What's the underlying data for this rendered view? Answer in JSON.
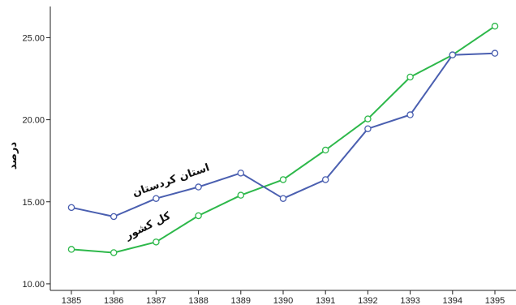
{
  "chart_data": {
    "type": "line",
    "ylabel": "درصد",
    "x": [
      "1385",
      "1386",
      "1387",
      "1388",
      "1389",
      "1390",
      "1391",
      "1392",
      "1393",
      "1394",
      "1395"
    ],
    "ylim": [
      9.6,
      26.9
    ],
    "yticks": [
      "10.00",
      "15.00",
      "20.00",
      "25.00"
    ],
    "grid": false,
    "series": [
      {
        "name": "استان کردستان",
        "color": "#4a5fb0",
        "values": [
          14.65,
          14.1,
          15.2,
          15.9,
          16.75,
          15.2,
          16.35,
          19.45,
          20.3,
          23.95,
          24.05
        ]
      },
      {
        "name": "کل کشور",
        "color": "#2db84a",
        "values": [
          12.1,
          11.9,
          12.55,
          14.15,
          15.4,
          16.35,
          18.15,
          20.05,
          22.6,
          23.95,
          25.7
        ]
      }
    ],
    "annotations": [
      {
        "text": "استان کردستان",
        "series": 0
      },
      {
        "text": "کل کشور",
        "series": 1
      }
    ]
  }
}
